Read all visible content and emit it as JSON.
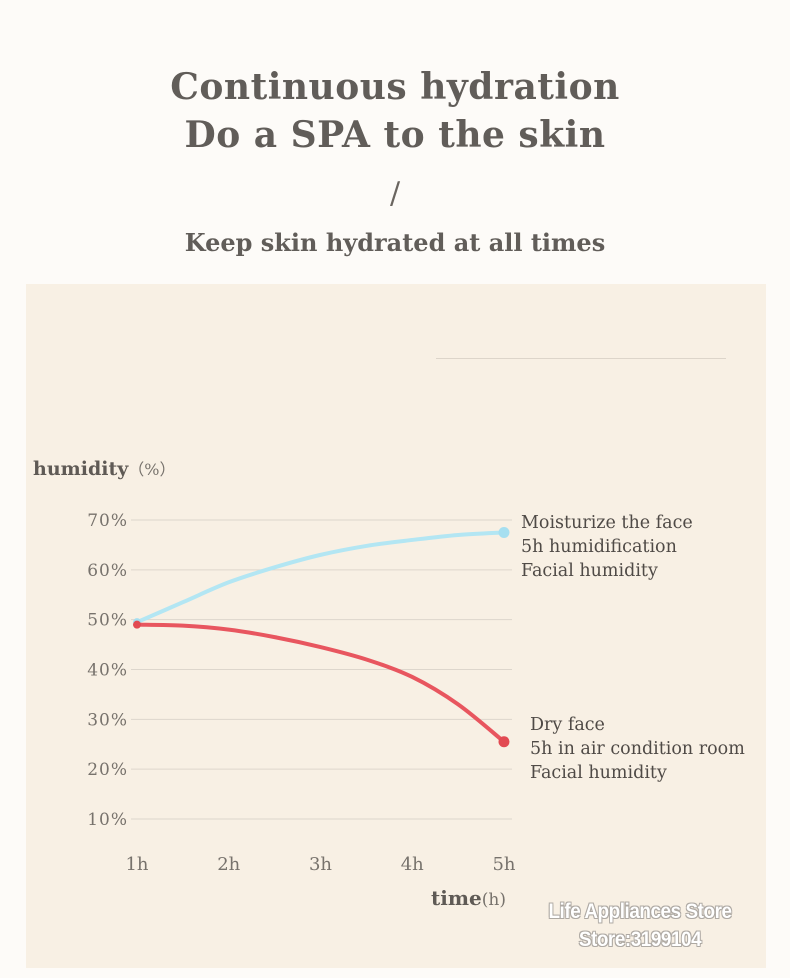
{
  "header": {
    "title_line1": "Continuous hydration",
    "title_line2": "Do a SPA to the skin",
    "divider": "/",
    "subtitle": "Keep skin hydrated at all times"
  },
  "chart_data": {
    "type": "line",
    "ylabel": "humidity",
    "ylabel_unit": "（%）",
    "xlabel": "time",
    "xlabel_unit": "(h)",
    "x": [
      1,
      2,
      3,
      4,
      5
    ],
    "x_tick_labels": [
      "1h",
      "2h",
      "3h",
      "4h",
      "5h"
    ],
    "y_ticks": [
      70,
      60,
      50,
      40,
      30,
      20,
      10
    ],
    "y_tick_labels": [
      "70%",
      "60%",
      "50%",
      "40%",
      "30%",
      "20%",
      "10%"
    ],
    "ylim": [
      10,
      70
    ],
    "grid": true,
    "series": [
      {
        "name": "Moisturize the face 5h humidification Facial humidity",
        "color": "#b3e6f3",
        "marker_color": "#a6dff0",
        "annotation_lines": [
          "Moisturize the face",
          "5h humidification",
          "Facial humidity"
        ],
        "x": [
          1,
          1.5,
          2,
          2.5,
          3,
          3.5,
          4,
          4.5,
          5
        ],
        "values": [
          49.5,
          53.5,
          57.5,
          60.5,
          63,
          64.8,
          66,
          67,
          67.5
        ]
      },
      {
        "name": "Dry face 5h in air condition room Facial humidity",
        "color": "#e8565f",
        "marker_color": "#e24a52",
        "annotation_lines": [
          "Dry face",
          "5h in air condition room",
          "Facial humidity"
        ],
        "x": [
          1,
          1.5,
          2,
          2.5,
          3,
          3.5,
          4,
          4.5,
          5
        ],
        "values": [
          49,
          48.8,
          48,
          46.5,
          44.5,
          42,
          38.5,
          33,
          25.5
        ]
      }
    ]
  },
  "watermark": {
    "line1": "Life Appliances Store",
    "line2": "Store:3199104"
  }
}
